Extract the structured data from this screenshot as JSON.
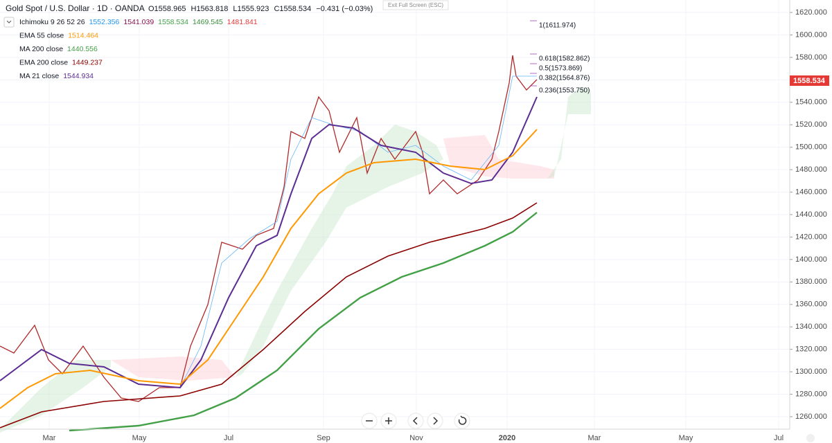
{
  "header": {
    "symbol": "Gold Spot / U.S. Dollar · 1D · OANDA",
    "open": "O1558.965",
    "high": "H1563.818",
    "low": "L1555.923",
    "close": "C1558.534",
    "change": "−0.431 (−0.03%)"
  },
  "exit_button": "Exit Full Screen (ESC)",
  "indicators": [
    {
      "name": "Ichimoku 9 26 52 26",
      "values": [
        {
          "text": "1552.356",
          "color": "#2196f3"
        },
        {
          "text": "1541.039",
          "color": "#880e4f"
        },
        {
          "text": "1558.534",
          "color": "#43a047"
        },
        {
          "text": "1469.545",
          "color": "#388e3c"
        },
        {
          "text": "1481.841",
          "color": "#e53935"
        }
      ]
    },
    {
      "name": "EMA 55 close",
      "values": [
        {
          "text": "1514.464",
          "color": "#ff9800"
        }
      ]
    },
    {
      "name": "MA 200 close",
      "values": [
        {
          "text": "1440.556",
          "color": "#43a047"
        }
      ]
    },
    {
      "name": "EMA 200 close",
      "values": [
        {
          "text": "1449.237",
          "color": "#8b0000"
        }
      ]
    },
    {
      "name": "MA 21 close",
      "values": [
        {
          "text": "1544.934",
          "color": "#5b2c91"
        }
      ]
    }
  ],
  "fib_levels": [
    {
      "text": "1(1611.974)",
      "color": "#9c27b0"
    },
    {
      "text": "0.618(1582.862)",
      "color": "#7b5ea7"
    },
    {
      "text": "0.5(1573.869)",
      "color": "#4caf50"
    },
    {
      "text": "0.382(1564.876)",
      "color": "#9c27b0"
    },
    {
      "text": "0.236(1553.750)",
      "color": "#7b5ea7"
    }
  ],
  "price_tag": "1558.534",
  "y_axis": [
    "1620.000",
    "1600.000",
    "1580.000",
    "1560.000",
    "1540.000",
    "1520.000",
    "1500.000",
    "1480.000",
    "1460.000",
    "1440.000",
    "1420.000",
    "1400.000",
    "1380.000",
    "1360.000",
    "1340.000",
    "1320.000",
    "1300.000",
    "1280.000",
    "1260.000"
  ],
  "x_axis": [
    "Mar",
    "May",
    "Jul",
    "Sep",
    "Nov",
    "2020",
    "Mar",
    "May",
    "Jul"
  ]
}
